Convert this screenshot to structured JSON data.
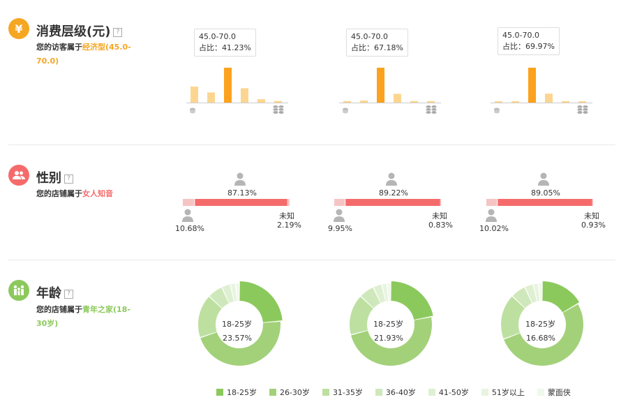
{
  "consumption": {
    "icon": "¥",
    "icon_color": "#f5a623",
    "title": "消费层级(元)",
    "help": "?",
    "desc_prefix": "您的访客属于",
    "desc_highlight": "经济型(45.0-70.0)",
    "charts": [
      {
        "tip_range": "45.0-70.0",
        "tip_ratio": "占比：41.23%",
        "values": [
          19,
          12,
          41.23,
          17,
          4,
          2
        ]
      },
      {
        "tip_range": "45.0-70.0",
        "tip_ratio": "占比：67.18%",
        "values": [
          3,
          4,
          67.18,
          17,
          3,
          3
        ]
      },
      {
        "tip_range": "45.0-70.0",
        "tip_ratio": "占比：69.97%",
        "values": [
          1,
          2,
          69.97,
          18,
          3,
          2
        ]
      }
    ]
  },
  "gender": {
    "icon": "👥",
    "icon_color": "#f56b6b",
    "title": "性别",
    "help": "?",
    "desc_prefix": "您的店铺属于",
    "desc_highlight": "女人知音",
    "unknown_label": "未知",
    "charts": [
      {
        "female": "87.13%",
        "male": "10.68%",
        "unknown": "2.19%",
        "female_v": 87.13,
        "male_v": 10.68,
        "unknown_v": 2.19
      },
      {
        "female": "89.22%",
        "male": "9.95%",
        "unknown": "0.83%",
        "female_v": 89.22,
        "male_v": 9.95,
        "unknown_v": 0.83
      },
      {
        "female": "89.05%",
        "male": "10.02%",
        "unknown": "0.93%",
        "female_v": 89.05,
        "male_v": 10.02,
        "unknown_v": 0.93
      }
    ]
  },
  "age": {
    "icon": "👪",
    "icon_color": "#8cc95d",
    "title": "年龄",
    "help": "?",
    "desc_prefix": "您的店铺属于",
    "desc_highlight": "青年之家(18-30岁)",
    "colors": [
      "#8cc95d",
      "#a3d17a",
      "#bde0a0",
      "#cfe8bb",
      "#dff0d2",
      "#e8f4df",
      "#f0f8ea"
    ],
    "charts": [
      {
        "center_label": "18-25岁",
        "center_value": "23.57%",
        "values": [
          23.57,
          46,
          17,
          6,
          3.5,
          2,
          1.5
        ]
      },
      {
        "center_label": "18-25岁",
        "center_value": "21.93%",
        "values": [
          21.93,
          49,
          16,
          6,
          3.5,
          2,
          1.5
        ]
      },
      {
        "center_label": "18-25岁",
        "center_value": "16.68%",
        "values": [
          16.68,
          53,
          18,
          6,
          3.5,
          2,
          1.5
        ]
      }
    ],
    "legend": [
      "18-25岁",
      "26-30岁",
      "31-35岁",
      "36-40岁",
      "41-50岁",
      "51岁以上",
      "蒙面侠"
    ]
  }
}
